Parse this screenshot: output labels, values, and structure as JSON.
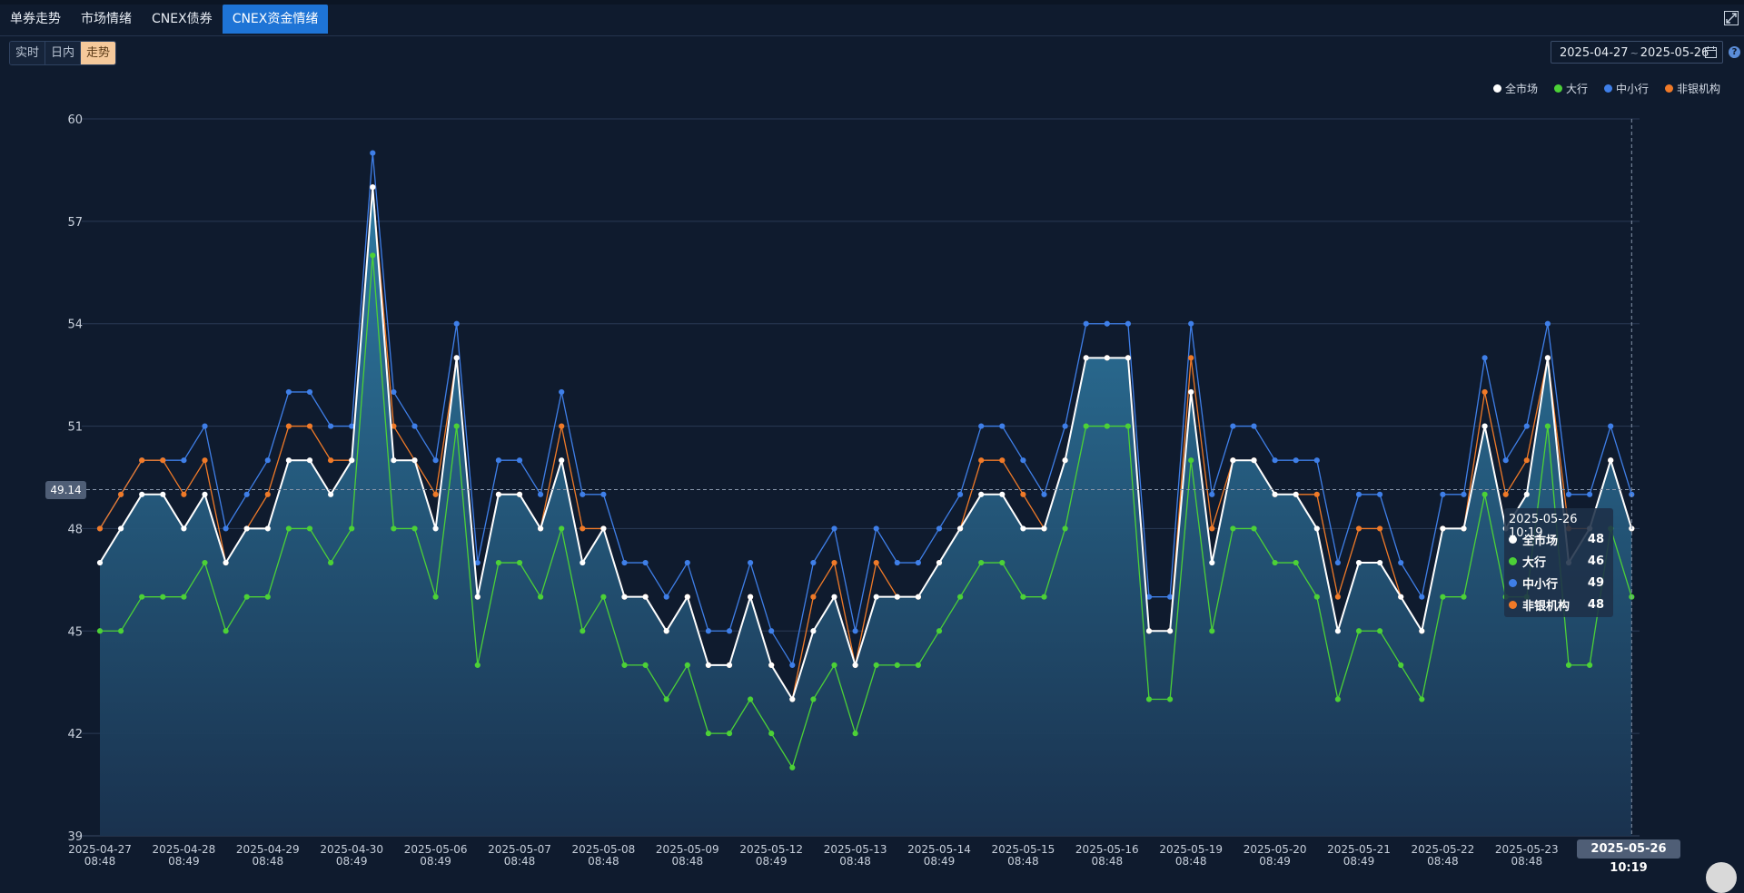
{
  "tabs": [
    {
      "label": "单券走势",
      "active": false
    },
    {
      "label": "市场情绪",
      "active": false
    },
    {
      "label": "CNEX债券",
      "active": false
    },
    {
      "label": "CNEX资金情绪",
      "active": true
    }
  ],
  "modes": [
    {
      "label": "实时",
      "active": false
    },
    {
      "label": "日内",
      "active": false
    },
    {
      "label": "走势",
      "active": true
    }
  ],
  "date_range": {
    "start": "2025-04-27",
    "separator": "~",
    "end": "2025-05-26"
  },
  "help_label": "?",
  "legend": [
    {
      "name": "全市场",
      "color": "#ffffff"
    },
    {
      "name": "大行",
      "color": "#4cd137"
    },
    {
      "name": "中小行",
      "color": "#3f7fe8"
    },
    {
      "name": "非银机构",
      "color": "#f07a28"
    }
  ],
  "pointer": {
    "y_value": "49.14",
    "x_label": "2025-05-26 10:19"
  },
  "tooltip": {
    "title": "2025-05-26 10:19",
    "rows": [
      {
        "name": "全市场",
        "value": "48",
        "color": "#ffffff"
      },
      {
        "name": "大行",
        "value": "46",
        "color": "#4cd137"
      },
      {
        "name": "中小行",
        "value": "49",
        "color": "#3f7fe8"
      },
      {
        "name": "非银机构",
        "value": "48",
        "color": "#f07a28"
      }
    ]
  },
  "chart_data": {
    "type": "line",
    "ylim": [
      39,
      60
    ],
    "yticks": [
      39,
      42,
      45,
      48,
      51,
      54,
      57,
      60
    ],
    "x_tick_labels": [
      [
        "2025-04-27",
        "08:48"
      ],
      [
        "2025-04-28",
        "08:49"
      ],
      [
        "2025-04-29",
        "08:48"
      ],
      [
        "2025-04-30",
        "08:49"
      ],
      [
        "2025-05-06",
        "08:49"
      ],
      [
        "2025-05-07",
        "08:48"
      ],
      [
        "2025-05-08",
        "08:48"
      ],
      [
        "2025-05-09",
        "08:48"
      ],
      [
        "2025-05-12",
        "08:49"
      ],
      [
        "2025-05-13",
        "08:48"
      ],
      [
        "2025-05-14",
        "08:49"
      ],
      [
        "2025-05-15",
        "08:48"
      ],
      [
        "2025-05-16",
        "08:48"
      ],
      [
        "2025-05-19",
        "08:48"
      ],
      [
        "2025-05-20",
        "08:49"
      ],
      [
        "2025-05-21",
        "08:49"
      ],
      [
        "2025-05-22",
        "08:48"
      ],
      [
        "2025-05-23",
        "08:48"
      ],
      [
        "2025-05-26",
        ""
      ]
    ],
    "points_per_tick": 4,
    "area_fill": true,
    "series": [
      {
        "name": "大行",
        "color": "#4cd137",
        "values": [
          45,
          45,
          46,
          46,
          46,
          47,
          45,
          46,
          46,
          48,
          48,
          47,
          48,
          56,
          48,
          48,
          46,
          51,
          44,
          47,
          47,
          46,
          48,
          45,
          46,
          44,
          44,
          43,
          44,
          42,
          42,
          43,
          42,
          41,
          43,
          44,
          42,
          44,
          44,
          44,
          45,
          46,
          47,
          47,
          46,
          46,
          48,
          51,
          51,
          51,
          43,
          43,
          50,
          45,
          48,
          48,
          47,
          47,
          46,
          43,
          45,
          45,
          44,
          43,
          46,
          46,
          49,
          46,
          46,
          51,
          44,
          44,
          48,
          46
        ]
      },
      {
        "name": "中小行",
        "color": "#3f7fe8",
        "values": [
          48,
          49,
          50,
          50,
          50,
          51,
          48,
          49,
          50,
          52,
          52,
          51,
          51,
          59,
          52,
          51,
          50,
          54,
          47,
          50,
          50,
          49,
          52,
          49,
          49,
          47,
          47,
          46,
          47,
          45,
          45,
          47,
          45,
          44,
          47,
          48,
          45,
          48,
          47,
          47,
          48,
          49,
          51,
          51,
          50,
          49,
          51,
          54,
          54,
          54,
          46,
          46,
          54,
          49,
          51,
          51,
          50,
          50,
          50,
          47,
          49,
          49,
          47,
          46,
          49,
          49,
          53,
          50,
          51,
          54,
          49,
          49,
          51,
          49
        ]
      },
      {
        "name": "非银机构",
        "color": "#f07a28",
        "values": [
          48,
          49,
          50,
          50,
          49,
          50,
          47,
          48,
          49,
          51,
          51,
          50,
          50,
          58,
          51,
          50,
          49,
          53,
          46,
          49,
          49,
          48,
          51,
          48,
          48,
          46,
          46,
          45,
          46,
          44,
          44,
          46,
          44,
          43,
          46,
          47,
          44,
          47,
          46,
          46,
          47,
          48,
          50,
          50,
          49,
          48,
          50,
          53,
          53,
          53,
          45,
          45,
          53,
          48,
          50,
          50,
          49,
          49,
          49,
          46,
          48,
          48,
          46,
          45,
          48,
          48,
          52,
          49,
          50,
          53,
          48,
          48,
          50,
          48
        ]
      },
      {
        "name": "全市场",
        "color": "#ffffff",
        "values": [
          47,
          48,
          49,
          49,
          48,
          49,
          47,
          48,
          48,
          50,
          50,
          49,
          50,
          58,
          50,
          50,
          48,
          53,
          46,
          49,
          49,
          48,
          50,
          47,
          48,
          46,
          46,
          45,
          46,
          44,
          44,
          46,
          44,
          43,
          45,
          46,
          44,
          46,
          46,
          46,
          47,
          48,
          49,
          49,
          48,
          48,
          50,
          53,
          53,
          53,
          45,
          45,
          52,
          47,
          50,
          50,
          49,
          49,
          48,
          45,
          47,
          47,
          46,
          45,
          48,
          48,
          51,
          48,
          49,
          53,
          47,
          48,
          50,
          48
        ]
      }
    ]
  }
}
